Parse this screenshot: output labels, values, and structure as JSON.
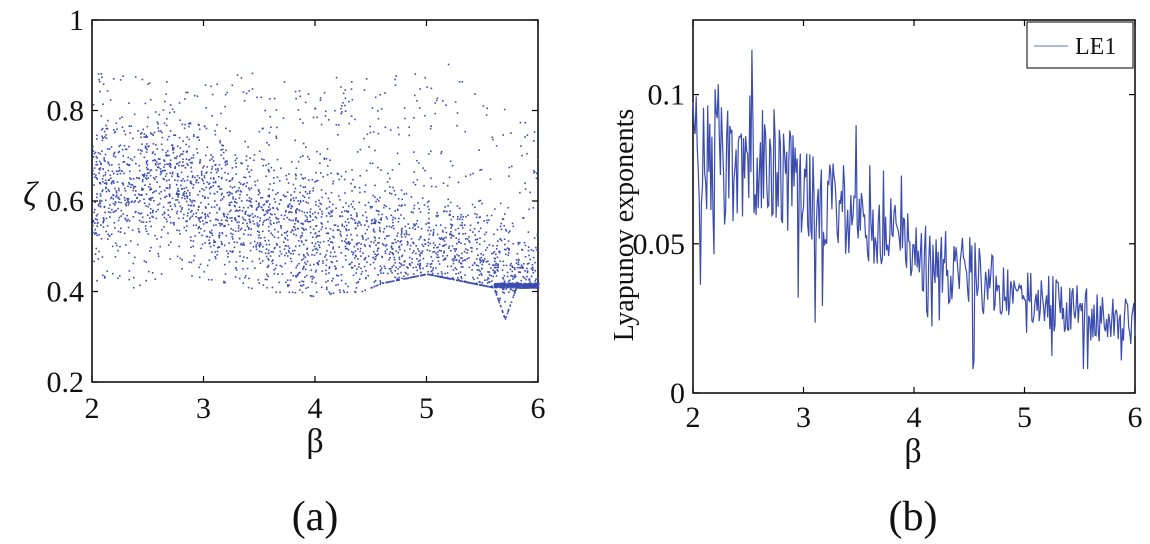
{
  "figure": {
    "panel_labels": [
      "(a)",
      "(b)"
    ],
    "colors": {
      "series": "#3b4cb0",
      "axes": "#000000",
      "background": "#ffffff"
    }
  },
  "chart_data": [
    {
      "type": "scatter",
      "panel": "(a)",
      "xlabel": "β",
      "ylabel": "ζ",
      "xlim": [
        2,
        6
      ],
      "ylim": [
        0.2,
        1.0
      ],
      "xticks": [
        "2",
        "3",
        "4",
        "5",
        "6"
      ],
      "yticks": [
        "0.2",
        "0.4",
        "0.6",
        "0.8",
        "1"
      ],
      "grid": false,
      "legend": null,
      "description_points": "bifurcation-like dense cloud of points",
      "series": [
        {
          "x": [
            2.0,
            2.2,
            2.4,
            2.6,
            2.8,
            3.0,
            3.2,
            3.4,
            3.6,
            3.8,
            4.0,
            4.2,
            4.4,
            4.6,
            4.8,
            5.0,
            5.2,
            5.4,
            5.6,
            5.7,
            5.8,
            6.0
          ],
          "y_min": [
            0.42,
            0.4,
            0.41,
            0.42,
            0.43,
            0.43,
            0.42,
            0.41,
            0.4,
            0.4,
            0.39,
            0.4,
            0.4,
            0.42,
            0.43,
            0.44,
            0.43,
            0.42,
            0.41,
            0.34,
            0.41,
            0.41
          ],
          "y_max": [
            0.89,
            0.88,
            0.88,
            0.87,
            0.86,
            0.86,
            0.89,
            0.89,
            0.9,
            0.89,
            0.89,
            0.88,
            0.88,
            0.9,
            0.9,
            0.88,
            0.92,
            0.85,
            0.8,
            0.82,
            0.8,
            0.75
          ],
          "y_center": [
            0.62,
            0.63,
            0.64,
            0.66,
            0.64,
            0.6,
            0.57,
            0.57,
            0.56,
            0.54,
            0.53,
            0.52,
            0.51,
            0.51,
            0.49,
            0.48,
            0.47,
            0.46,
            0.44,
            0.42,
            0.42,
            0.42
          ]
        }
      ]
    },
    {
      "type": "line",
      "panel": "(b)",
      "xlabel": "β",
      "ylabel": "Lyapunov exponents",
      "xlim": [
        2,
        6
      ],
      "ylim": [
        0,
        0.125
      ],
      "xticks": [
        "2",
        "3",
        "4",
        "5",
        "6"
      ],
      "yticks": [
        "0",
        "0.05",
        "0.1"
      ],
      "grid": false,
      "legend": "top-right",
      "series": [
        {
          "name": "LE1",
          "x": [
            2.0,
            2.1,
            2.2,
            2.3,
            2.4,
            2.5,
            2.6,
            2.7,
            2.8,
            2.9,
            3.0,
            3.1,
            3.2,
            3.3,
            3.4,
            3.5,
            3.6,
            3.7,
            3.8,
            3.9,
            4.0,
            4.1,
            4.2,
            4.3,
            4.4,
            4.5,
            4.6,
            4.7,
            4.8,
            4.9,
            5.0,
            5.1,
            5.2,
            5.3,
            5.4,
            5.5,
            5.6,
            5.7,
            5.8,
            5.9,
            6.0
          ],
          "y": [
            0.085,
            0.082,
            0.083,
            0.07,
            0.071,
            0.08,
            0.078,
            0.08,
            0.073,
            0.072,
            0.068,
            0.066,
            0.065,
            0.063,
            0.061,
            0.058,
            0.057,
            0.055,
            0.052,
            0.05,
            0.049,
            0.045,
            0.044,
            0.041,
            0.04,
            0.041,
            0.039,
            0.036,
            0.035,
            0.032,
            0.031,
            0.03,
            0.03,
            0.029,
            0.028,
            0.027,
            0.026,
            0.025,
            0.026,
            0.024,
            0.023
          ],
          "amplitude": [
            0.02,
            0.022,
            0.024,
            0.026,
            0.02,
            0.02,
            0.022,
            0.02,
            0.018,
            0.018,
            0.016,
            0.016,
            0.016,
            0.015,
            0.015,
            0.014,
            0.014,
            0.013,
            0.013,
            0.013,
            0.012,
            0.012,
            0.012,
            0.013,
            0.013,
            0.014,
            0.012,
            0.011,
            0.01,
            0.01,
            0.01,
            0.01,
            0.01,
            0.01,
            0.009,
            0.009,
            0.009,
            0.009,
            0.008,
            0.008,
            0.008
          ]
        }
      ]
    }
  ]
}
